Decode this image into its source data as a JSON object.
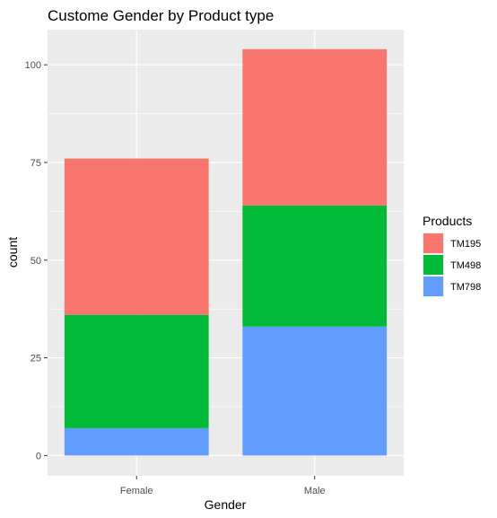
{
  "chart_data": {
    "type": "bar",
    "stacked": true,
    "title": "Custome Gender by Product type",
    "xlabel": "Gender",
    "ylabel": "count",
    "categories": [
      "Female",
      "Male"
    ],
    "ylim": [
      0,
      109
    ],
    "yticks": [
      0,
      25,
      50,
      75,
      100
    ],
    "grid": true,
    "legend": {
      "title": "Products",
      "position": "right"
    },
    "series": [
      {
        "name": "TM195",
        "values": [
          40,
          40
        ],
        "color": "#F8766D"
      },
      {
        "name": "TM498",
        "values": [
          29,
          31
        ],
        "color": "#00BA38"
      },
      {
        "name": "TM798",
        "values": [
          7,
          33
        ],
        "color": "#619CFF"
      }
    ],
    "panel_background": "#EBEBEB",
    "grid_color": "#FFFFFF"
  }
}
